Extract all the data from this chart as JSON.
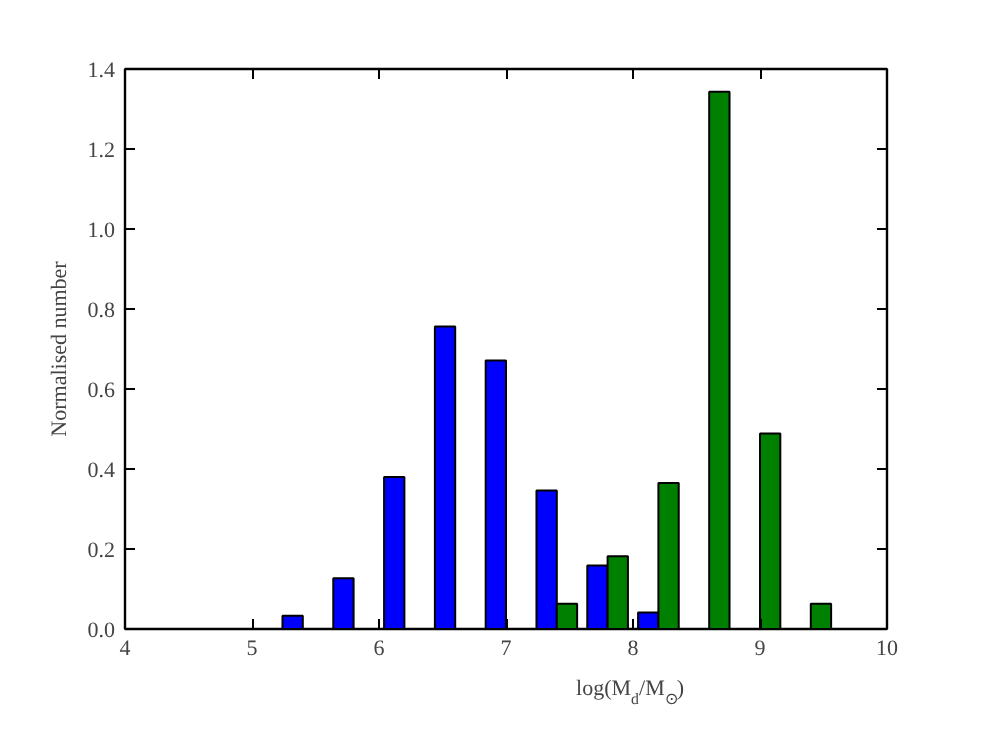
{
  "chart_data": {
    "type": "histogram",
    "xlabel": "log(M$_{d}$/M$_{⊙}$)",
    "ylabel": "Normalised number",
    "bins": [
      4.4,
      4.8,
      5.2,
      5.6,
      6.0,
      6.4,
      6.8,
      7.2,
      7.6,
      8.0,
      8.4,
      8.8,
      9.2,
      9.6
    ],
    "series": [
      {
        "color": "#0000ff",
        "values": [
          0,
          0,
          0.033,
          0.127,
          0.38,
          0.756,
          0.671,
          0.346,
          0.159,
          0.041,
          0,
          0,
          0
        ]
      },
      {
        "color": "#008000",
        "values": [
          0,
          0,
          0,
          0,
          0,
          0,
          0,
          0.063,
          0.182,
          0.365,
          1.343,
          0.489,
          0.063
        ]
      }
    ],
    "xlim": [
      4,
      10
    ],
    "ylim": [
      0,
      1.4
    ],
    "xticks": [
      4,
      5,
      6,
      7,
      8,
      9,
      10
    ],
    "yticks": [
      {
        "value": 0,
        "label": "0.0"
      },
      {
        "value": 0.2,
        "label": "0.2"
      },
      {
        "value": 0.4,
        "label": "0.4"
      },
      {
        "value": 0.6,
        "label": "0.6"
      },
      {
        "value": 0.8,
        "label": "0.8"
      },
      {
        "value": 1.0,
        "label": "1.0"
      },
      {
        "value": 1.2,
        "label": "1.2"
      },
      {
        "value": 1.4,
        "label": "1.4"
      }
    ],
    "grid": false
  }
}
